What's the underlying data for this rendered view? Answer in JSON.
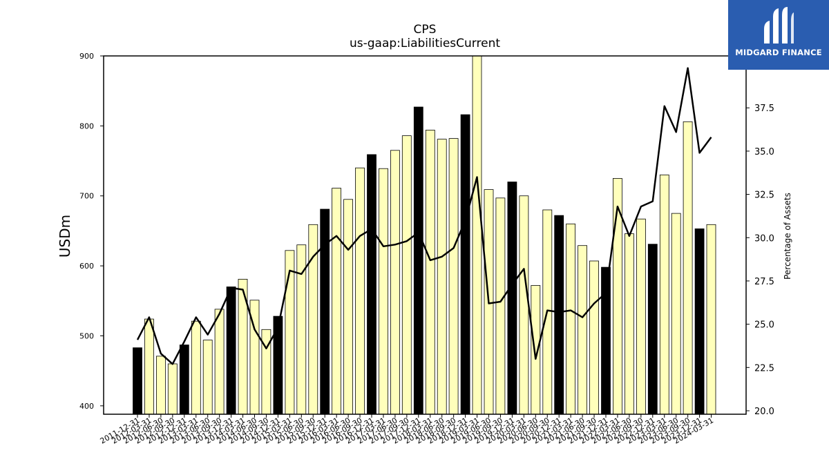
{
  "brand": {
    "name": "MIDGARD FINANCE",
    "color": "#2a5db0"
  },
  "colors": {
    "annual_bar": "#000000",
    "quarter_bar": "#ffffbb",
    "line": "#000000"
  },
  "chart_data": {
    "type": "bar",
    "title": "CPS",
    "subtitle": "us-gaap:LiabilitiesCurrent",
    "ylabel": "USDm",
    "y2label": "Percentage of Assets",
    "ylim": [
      388,
      900
    ],
    "y2lim": [
      19.8,
      40.5
    ],
    "yticks": [
      400,
      500,
      600,
      700,
      800,
      900
    ],
    "y2ticks": [
      20.0,
      22.5,
      25.0,
      27.5,
      30.0,
      32.5,
      35.0,
      37.5
    ],
    "categories": [
      "2011-12-31",
      "2012-03-31",
      "2012-06-30",
      "2012-09-30",
      "2012-12-31",
      "2013-03-31",
      "2013-06-30",
      "2013-09-30",
      "2013-12-31",
      "2014-03-31",
      "2014-06-30",
      "2014-09-30",
      "2014-12-31",
      "2015-03-31",
      "2015-06-30",
      "2015-09-30",
      "2015-12-31",
      "2016-03-31",
      "2016-06-30",
      "2016-09-30",
      "2016-12-31",
      "2017-03-31",
      "2017-06-30",
      "2017-09-30",
      "2017-12-31",
      "2018-03-31",
      "2018-06-30",
      "2018-09-30",
      "2018-12-31",
      "2019-03-31",
      "2019-06-30",
      "2019-09-30",
      "2019-12-31",
      "2020-03-31",
      "2020-06-30",
      "2020-09-30",
      "2020-12-31",
      "2021-03-31",
      "2021-06-30",
      "2021-09-30",
      "2021-12-31",
      "2022-03-31",
      "2022-06-30",
      "2022-09-30",
      "2022-12-31",
      "2023-03-31",
      "2023-06-30",
      "2023-09-30",
      "2023-12-31",
      "2024-03-31"
    ],
    "xtick_labels": [
      "2011-12-31",
      "2012-03-31",
      "2012-06-30",
      "2012-09-30",
      "2012-12-31",
      "2013-03-31",
      "2013-06-30",
      "2013-09-30",
      "2013-12-31",
      "2014-03-31",
      "2014-06-30",
      "2014-09-30",
      "2014-12-31",
      "2015-03-31",
      "2015-06-30",
      "2015-09-30",
      "2015-12-31",
      "2016-03-31",
      "2016-06-30",
      "2016-09-30",
      "2016-12-31",
      "2017-03-31",
      "2017-06-30",
      "2017-09-30",
      "2017-12-31",
      "2018-03-31",
      "2018-06-30",
      "2018-09-30",
      "2018-12-31",
      "2019-03-31",
      "2019-06-30",
      "2019-09-30",
      "2019-12-31",
      "2020-03-31",
      "2020-06-30",
      "2020-09-30",
      "2020-12-31",
      "2021-03-31",
      "2021-06-30",
      "2021-09-30",
      "2021-12-31",
      "2022-03-31",
      "2022-06-30",
      "2022-09-30",
      "2022-12-31",
      "2023-03-31",
      "2023-06-30",
      "2023-09-30",
      "2023-12-31",
      "2024-03-31"
    ],
    "values": [
      483,
      524,
      471,
      460,
      487,
      521,
      494,
      538,
      570,
      581,
      551,
      509,
      528,
      622,
      630,
      659,
      681,
      711,
      695,
      740,
      759,
      739,
      765,
      786,
      827,
      794,
      781,
      782,
      816,
      900,
      709,
      697,
      720,
      700,
      572,
      680,
      672,
      660,
      629,
      607,
      598,
      725,
      646,
      667,
      631,
      730,
      675,
      806,
      653,
      659
    ],
    "year_end": [
      true,
      false,
      false,
      false,
      true,
      false,
      false,
      false,
      true,
      false,
      false,
      false,
      true,
      false,
      false,
      false,
      true,
      false,
      false,
      false,
      true,
      false,
      false,
      false,
      true,
      false,
      false,
      false,
      true,
      false,
      false,
      false,
      true,
      false,
      false,
      false,
      true,
      false,
      false,
      false,
      true,
      false,
      false,
      false,
      true,
      false,
      false,
      false,
      true,
      false
    ],
    "pct_of_assets": [
      24.1,
      25.4,
      23.3,
      22.7,
      24.0,
      25.4,
      24.4,
      25.6,
      27.1,
      27.0,
      24.7,
      23.6,
      24.8,
      28.1,
      27.9,
      28.9,
      29.6,
      30.1,
      29.3,
      30.1,
      30.5,
      29.5,
      29.6,
      29.8,
      30.3,
      28.7,
      28.9,
      29.4,
      31.0,
      33.5,
      26.2,
      26.3,
      27.3,
      28.2,
      23.0,
      25.8,
      25.7,
      25.8,
      25.4,
      26.2,
      26.8,
      31.8,
      30.1,
      31.8,
      32.1,
      37.6,
      36.1,
      39.8,
      34.9,
      35.8
    ]
  }
}
